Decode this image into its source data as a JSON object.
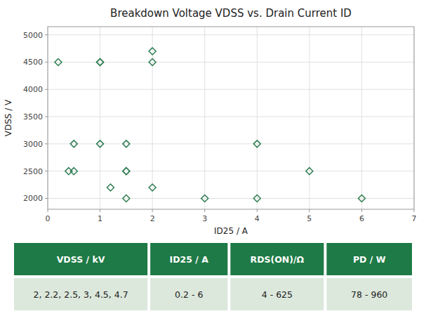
{
  "chart_data": {
    "type": "scatter",
    "title": "Breakdown Voltage VDSS vs. Drain Current ID",
    "x_label": "ID25 / A",
    "y_label": "VDSS / V",
    "x": [
      0.2,
      0.4,
      0.5,
      0.5,
      1.0,
      1.0,
      1.0,
      1.2,
      1.5,
      1.5,
      1.5,
      1.5,
      2.0,
      2.0,
      2.0,
      3.0,
      4.0,
      4.0,
      5.0,
      6.0
    ],
    "values": [
      4500,
      2500,
      2500,
      3000,
      4500,
      4500,
      3000,
      2200,
      2000,
      2500,
      2500,
      3000,
      4700,
      4500,
      2200,
      2000,
      3000,
      2000,
      2500,
      2000
    ],
    "color": "#2e7d52",
    "marker": "diamond",
    "xlim": [
      0,
      7
    ],
    "ylim": [
      1800,
      5150
    ],
    "xticks": [
      0,
      1,
      2,
      3,
      4,
      5,
      6,
      7
    ],
    "yticks": [
      2000,
      2500,
      3000,
      3500,
      4000,
      4500,
      5000
    ],
    "grid": true,
    "table": {
      "headers": [
        "VDSS / kV",
        "ID25 / A",
        "RDS(ON)/Ω",
        "PD / W"
      ],
      "values": [
        "2, 2.2, 2.5, 3, 4.5, 4.7",
        "0.2 - 6",
        "4 - 625",
        "78 - 960"
      ]
    }
  }
}
